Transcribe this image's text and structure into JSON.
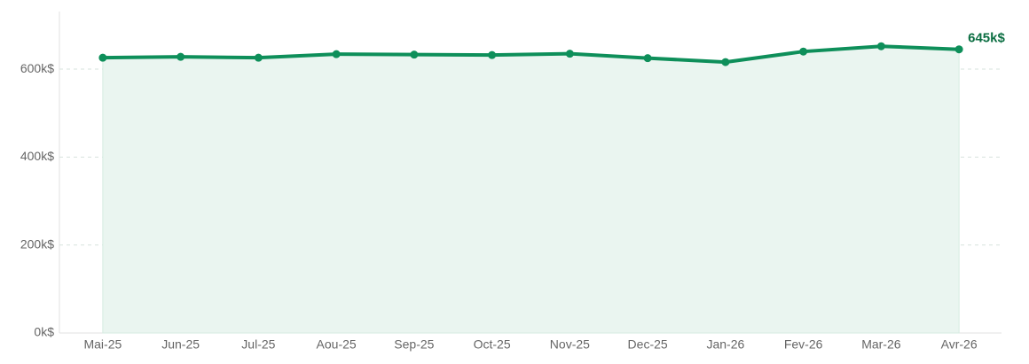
{
  "chart_data": {
    "type": "line",
    "categories": [
      "Mai-25",
      "Jun-25",
      "Jul-25",
      "Aou-25",
      "Sep-25",
      "Oct-25",
      "Nov-25",
      "Dec-25",
      "Jan-26",
      "Fev-26",
      "Mar-26",
      "Avr-26"
    ],
    "series": [
      {
        "color": "#0e8f5a",
        "fill": "#eaf5f0",
        "values": [
          626,
          628,
          626,
          634,
          633,
          632,
          635,
          625,
          616,
          640,
          652,
          645
        ],
        "value_labels": [
          null,
          null,
          null,
          null,
          null,
          null,
          null,
          null,
          null,
          null,
          null,
          "645k$"
        ]
      }
    ],
    "ylim": [
      0,
      731
    ],
    "yticks": [
      {
        "value": 0,
        "label": "0k$"
      },
      {
        "value": 200,
        "label": "200k$"
      },
      {
        "value": 400,
        "label": "400k$"
      },
      {
        "value": 600,
        "label": "600k$"
      }
    ],
    "grid": true
  }
}
